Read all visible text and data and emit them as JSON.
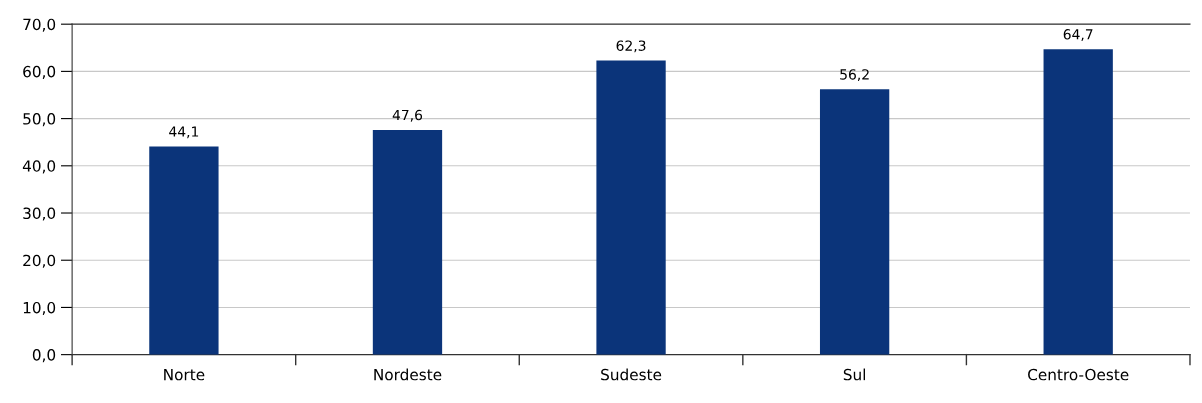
{
  "chart_data": {
    "type": "bar",
    "categories": [
      "Norte",
      "Nordeste",
      "Sudeste",
      "Sul",
      "Centro-Oeste"
    ],
    "values": [
      44.1,
      47.6,
      62.3,
      56.2,
      64.7
    ],
    "color": "#0b347a",
    "value_labels": [
      "44,1",
      "47,6",
      "62,3",
      "56,2",
      "64,7"
    ],
    "ylim": [
      0,
      70
    ],
    "yticks": [
      {
        "value": 0,
        "label": "0,0"
      },
      {
        "value": 10,
        "label": "10,0"
      },
      {
        "value": 20,
        "label": "20,0"
      },
      {
        "value": 30,
        "label": "30,0"
      },
      {
        "value": 40,
        "label": "40,0"
      },
      {
        "value": 50,
        "label": "50,0"
      },
      {
        "value": 60,
        "label": "60,0"
      },
      {
        "value": 70,
        "label": "70,0"
      }
    ],
    "grid": "y",
    "legend": false
  }
}
